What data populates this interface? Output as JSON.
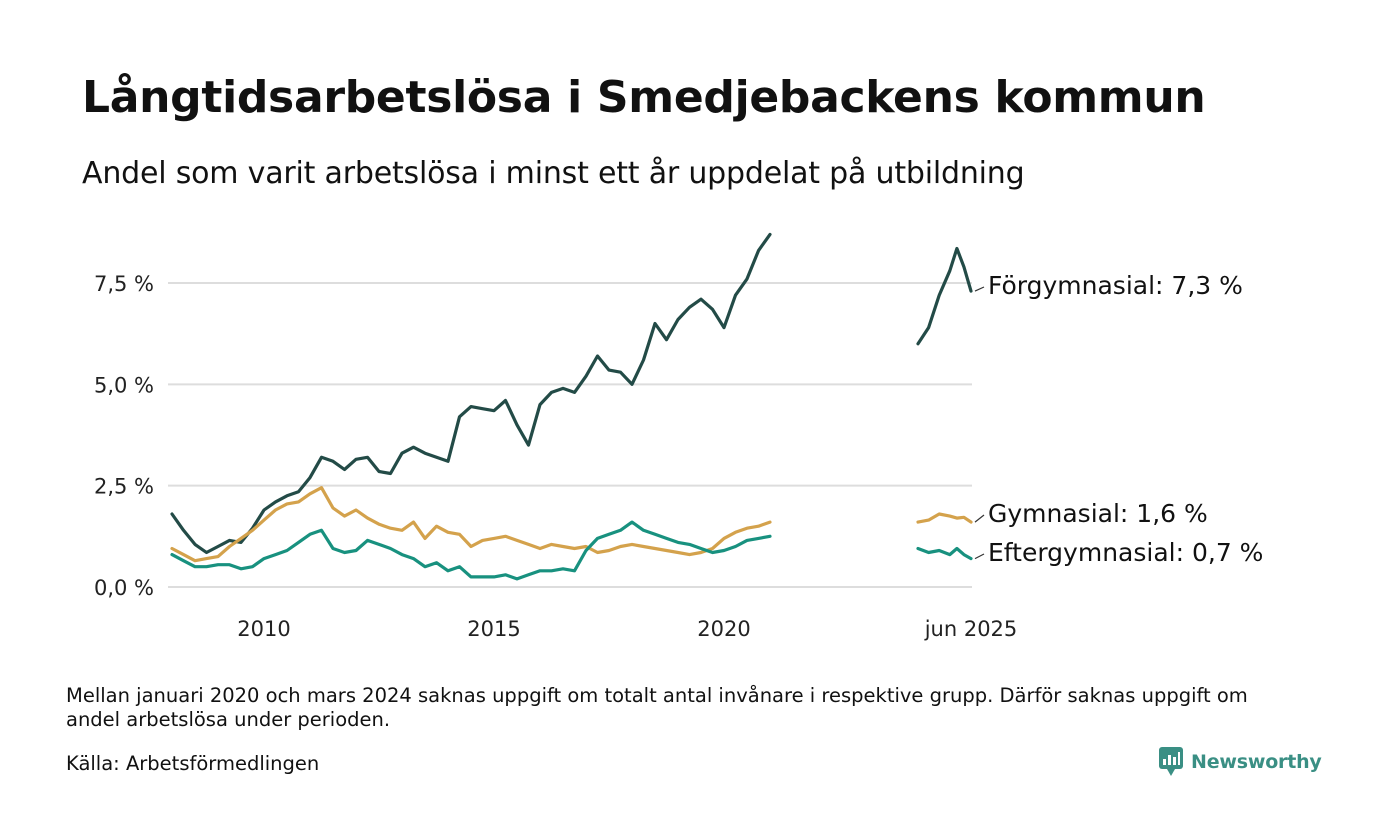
{
  "title": "Långtidsarbetslösa i Smedjebackens kommun",
  "subtitle": "Andel som varit arbetslösa i minst ett år uppdelat på utbildning",
  "footnote": "Mellan januari 2020 och mars 2024 saknas uppgift om totalt antal invånare i respektive grupp. Därför saknas uppgift om andel arbetslösa under perioden.",
  "source": "Källa: Arbetsförmedlingen",
  "brand": {
    "name": "Newsworthy",
    "icon": "newsworthy-logo-icon"
  },
  "colors": {
    "grid": "#dddddd",
    "axis_text": "#222222"
  },
  "chart_data": {
    "type": "line",
    "title": "Långtidsarbetslösa i Smedjebackens kommun",
    "subtitle": "Andel som varit arbetslösa i minst ett år uppdelat på utbildning",
    "xlabel": "",
    "ylabel": "",
    "x_tick_labels": [
      "2010",
      "2015",
      "2020",
      "jun 2025"
    ],
    "y_tick_labels": [
      "0,0 %",
      "2,5 %",
      "5,0 %",
      "7,5 %"
    ],
    "y_tick_values": [
      0,
      2.5,
      5.0,
      7.5
    ],
    "ylim": [
      0,
      8.7
    ],
    "grid": "horizontal",
    "legend": "direct labels at right end of lines",
    "x_break": "2020-01 to 2024-03 missing",
    "series": [
      {
        "name": "Förgymnasial",
        "end_label": "Förgymnasial: 7,3 %",
        "color": "#234b47",
        "segment1": [
          [
            "2008-01",
            1.8
          ],
          [
            "2008-04",
            1.4
          ],
          [
            "2008-07",
            1.05
          ],
          [
            "2008-10",
            0.85
          ],
          [
            "2009-01",
            1.0
          ],
          [
            "2009-04",
            1.15
          ],
          [
            "2009-07",
            1.1
          ],
          [
            "2009-10",
            1.45
          ],
          [
            "2010-01",
            1.9
          ],
          [
            "2010-04",
            2.1
          ],
          [
            "2010-07",
            2.25
          ],
          [
            "2010-10",
            2.35
          ],
          [
            "2011-01",
            2.7
          ],
          [
            "2011-04",
            3.2
          ],
          [
            "2011-07",
            3.1
          ],
          [
            "2011-10",
            2.9
          ],
          [
            "2012-01",
            3.15
          ],
          [
            "2012-04",
            3.2
          ],
          [
            "2012-07",
            2.85
          ],
          [
            "2012-10",
            2.8
          ],
          [
            "2013-01",
            3.3
          ],
          [
            "2013-04",
            3.45
          ],
          [
            "2013-07",
            3.3
          ],
          [
            "2013-10",
            3.2
          ],
          [
            "2014-01",
            3.1
          ],
          [
            "2014-04",
            4.2
          ],
          [
            "2014-07",
            4.45
          ],
          [
            "2014-10",
            4.4
          ],
          [
            "2015-01",
            4.35
          ],
          [
            "2015-04",
            4.6
          ],
          [
            "2015-07",
            4.0
          ],
          [
            "2015-10",
            3.5
          ],
          [
            "2016-01",
            4.5
          ],
          [
            "2016-04",
            4.8
          ],
          [
            "2016-07",
            4.9
          ],
          [
            "2016-10",
            4.8
          ],
          [
            "2017-01",
            5.2
          ],
          [
            "2017-04",
            5.7
          ],
          [
            "2017-07",
            5.35
          ],
          [
            "2017-10",
            5.3
          ],
          [
            "2018-01",
            5.0
          ],
          [
            "2018-04",
            5.6
          ],
          [
            "2018-07",
            6.5
          ],
          [
            "2018-10",
            6.1
          ],
          [
            "2019-01",
            6.6
          ],
          [
            "2019-04",
            6.9
          ],
          [
            "2019-07",
            7.1
          ],
          [
            "2019-10",
            6.85
          ],
          [
            "2020-01",
            6.4
          ],
          [
            "2020-04",
            7.2
          ],
          [
            "2020-07",
            7.6
          ],
          [
            "2020-10",
            8.3
          ],
          [
            "2021-01",
            8.7
          ]
        ],
        "segment2": [
          [
            "2024-03",
            6.0
          ],
          [
            "2024-06",
            6.4
          ],
          [
            "2024-09",
            7.2
          ],
          [
            "2024-12",
            7.8
          ],
          [
            "2025-02",
            8.35
          ],
          [
            "2025-04",
            7.9
          ],
          [
            "2025-06",
            7.3
          ]
        ]
      },
      {
        "name": "Gymnasial",
        "end_label": "Gymnasial: 1,6 %",
        "color": "#d4a24c",
        "segment1": [
          [
            "2008-01",
            0.95
          ],
          [
            "2008-04",
            0.8
          ],
          [
            "2008-07",
            0.65
          ],
          [
            "2008-10",
            0.7
          ],
          [
            "2009-01",
            0.75
          ],
          [
            "2009-04",
            1.0
          ],
          [
            "2009-07",
            1.2
          ],
          [
            "2009-10",
            1.4
          ],
          [
            "2010-01",
            1.65
          ],
          [
            "2010-04",
            1.9
          ],
          [
            "2010-07",
            2.05
          ],
          [
            "2010-10",
            2.1
          ],
          [
            "2011-01",
            2.3
          ],
          [
            "2011-04",
            2.45
          ],
          [
            "2011-07",
            1.95
          ],
          [
            "2011-10",
            1.75
          ],
          [
            "2012-01",
            1.9
          ],
          [
            "2012-04",
            1.7
          ],
          [
            "2012-07",
            1.55
          ],
          [
            "2012-10",
            1.45
          ],
          [
            "2013-01",
            1.4
          ],
          [
            "2013-04",
            1.6
          ],
          [
            "2013-07",
            1.2
          ],
          [
            "2013-10",
            1.5
          ],
          [
            "2014-01",
            1.35
          ],
          [
            "2014-04",
            1.3
          ],
          [
            "2014-07",
            1.0
          ],
          [
            "2014-10",
            1.15
          ],
          [
            "2015-01",
            1.2
          ],
          [
            "2015-04",
            1.25
          ],
          [
            "2015-07",
            1.15
          ],
          [
            "2015-10",
            1.05
          ],
          [
            "2016-01",
            0.95
          ],
          [
            "2016-04",
            1.05
          ],
          [
            "2016-07",
            1.0
          ],
          [
            "2016-10",
            0.95
          ],
          [
            "2017-01",
            1.0
          ],
          [
            "2017-04",
            0.85
          ],
          [
            "2017-07",
            0.9
          ],
          [
            "2017-10",
            1.0
          ],
          [
            "2018-01",
            1.05
          ],
          [
            "2018-04",
            1.0
          ],
          [
            "2018-07",
            0.95
          ],
          [
            "2018-10",
            0.9
          ],
          [
            "2019-01",
            0.85
          ],
          [
            "2019-04",
            0.8
          ],
          [
            "2019-07",
            0.85
          ],
          [
            "2019-10",
            0.95
          ],
          [
            "2020-01",
            1.2
          ],
          [
            "2020-04",
            1.35
          ],
          [
            "2020-07",
            1.45
          ],
          [
            "2020-10",
            1.5
          ],
          [
            "2021-01",
            1.6
          ]
        ],
        "segment2": [
          [
            "2024-03",
            1.6
          ],
          [
            "2024-06",
            1.65
          ],
          [
            "2024-09",
            1.8
          ],
          [
            "2024-12",
            1.75
          ],
          [
            "2025-02",
            1.7
          ],
          [
            "2025-04",
            1.72
          ],
          [
            "2025-06",
            1.6
          ]
        ]
      },
      {
        "name": "Eftergymnasial",
        "end_label": "Eftergymnasial: 0,7 %",
        "color": "#18917f",
        "segment1": [
          [
            "2008-01",
            0.8
          ],
          [
            "2008-04",
            0.65
          ],
          [
            "2008-07",
            0.5
          ],
          [
            "2008-10",
            0.5
          ],
          [
            "2009-01",
            0.55
          ],
          [
            "2009-04",
            0.55
          ],
          [
            "2009-07",
            0.45
          ],
          [
            "2009-10",
            0.5
          ],
          [
            "2010-01",
            0.7
          ],
          [
            "2010-04",
            0.8
          ],
          [
            "2010-07",
            0.9
          ],
          [
            "2010-10",
            1.1
          ],
          [
            "2011-01",
            1.3
          ],
          [
            "2011-04",
            1.4
          ],
          [
            "2011-07",
            0.95
          ],
          [
            "2011-10",
            0.85
          ],
          [
            "2012-01",
            0.9
          ],
          [
            "2012-04",
            1.15
          ],
          [
            "2012-07",
            1.05
          ],
          [
            "2012-10",
            0.95
          ],
          [
            "2013-01",
            0.8
          ],
          [
            "2013-04",
            0.7
          ],
          [
            "2013-07",
            0.5
          ],
          [
            "2013-10",
            0.6
          ],
          [
            "2014-01",
            0.4
          ],
          [
            "2014-04",
            0.5
          ],
          [
            "2014-07",
            0.25
          ],
          [
            "2014-10",
            0.25
          ],
          [
            "2015-01",
            0.25
          ],
          [
            "2015-04",
            0.3
          ],
          [
            "2015-07",
            0.2
          ],
          [
            "2015-10",
            0.3
          ],
          [
            "2016-01",
            0.4
          ],
          [
            "2016-04",
            0.4
          ],
          [
            "2016-07",
            0.45
          ],
          [
            "2016-10",
            0.4
          ],
          [
            "2017-01",
            0.9
          ],
          [
            "2017-04",
            1.2
          ],
          [
            "2017-07",
            1.3
          ],
          [
            "2017-10",
            1.4
          ],
          [
            "2018-01",
            1.6
          ],
          [
            "2018-04",
            1.4
          ],
          [
            "2018-07",
            1.3
          ],
          [
            "2018-10",
            1.2
          ],
          [
            "2019-01",
            1.1
          ],
          [
            "2019-04",
            1.05
          ],
          [
            "2019-07",
            0.95
          ],
          [
            "2019-10",
            0.85
          ],
          [
            "2020-01",
            0.9
          ],
          [
            "2020-04",
            1.0
          ],
          [
            "2020-07",
            1.15
          ],
          [
            "2020-10",
            1.2
          ],
          [
            "2021-01",
            1.25
          ]
        ],
        "segment2": [
          [
            "2024-03",
            0.95
          ],
          [
            "2024-06",
            0.85
          ],
          [
            "2024-09",
            0.9
          ],
          [
            "2024-12",
            0.8
          ],
          [
            "2025-02",
            0.95
          ],
          [
            "2025-04",
            0.8
          ],
          [
            "2025-06",
            0.7
          ]
        ]
      }
    ]
  }
}
